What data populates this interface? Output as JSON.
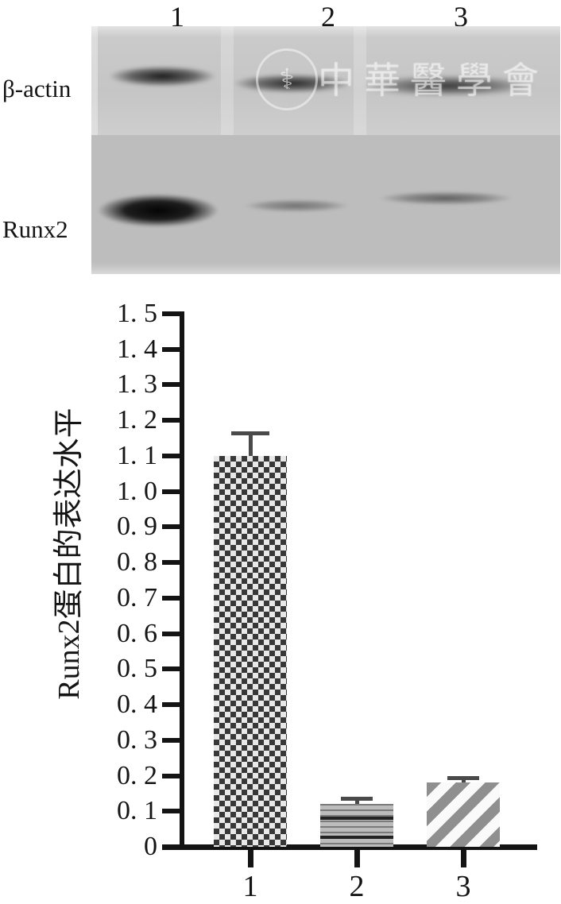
{
  "blot": {
    "lane_labels": [
      "1",
      "2",
      "3"
    ],
    "row_labels": {
      "top": "β-actin",
      "bottom": "Runx2"
    },
    "watermark": {
      "text": "中華醫學會",
      "logo": "chinese-medical-association-emblem"
    },
    "bands": [
      {
        "row": "β-actin",
        "lane": "1",
        "intensity": "strong"
      },
      {
        "row": "β-actin",
        "lane": "2",
        "intensity": "strong"
      },
      {
        "row": "β-actin",
        "lane": "3",
        "intensity": "strong"
      },
      {
        "row": "Runx2",
        "lane": "1",
        "intensity": "strong"
      },
      {
        "row": "Runx2",
        "lane": "2",
        "intensity": "weak"
      },
      {
        "row": "Runx2",
        "lane": "3",
        "intensity": "weak"
      }
    ]
  },
  "chart_data": {
    "type": "bar",
    "categories": [
      "1",
      "2",
      "3"
    ],
    "values": [
      1.1,
      0.12,
      0.18
    ],
    "errors": [
      0.07,
      0.02,
      0.02
    ],
    "title": "",
    "xlabel": "",
    "ylabel": "Runx2蛋白的表达水平",
    "ylim": [
      0,
      1.5
    ],
    "ytick_step": 0.1,
    "ytick_labels_top_to_bottom": [
      "1. 5",
      "1. 4",
      "1. 3",
      "1. 2",
      "1. 1",
      "1. 0",
      "0. 9",
      "0. 8",
      "0. 7",
      "0. 6",
      "0. 5",
      "0. 4",
      "0. 3",
      "0. 2",
      "0. 1",
      "0"
    ],
    "bar_patterns": [
      "checkerboard",
      "horizontal-stripes",
      "diagonal-stripes"
    ],
    "axis_color": "#141414",
    "bar_color": "#8c8c8c",
    "grid": false,
    "legend": false
  }
}
